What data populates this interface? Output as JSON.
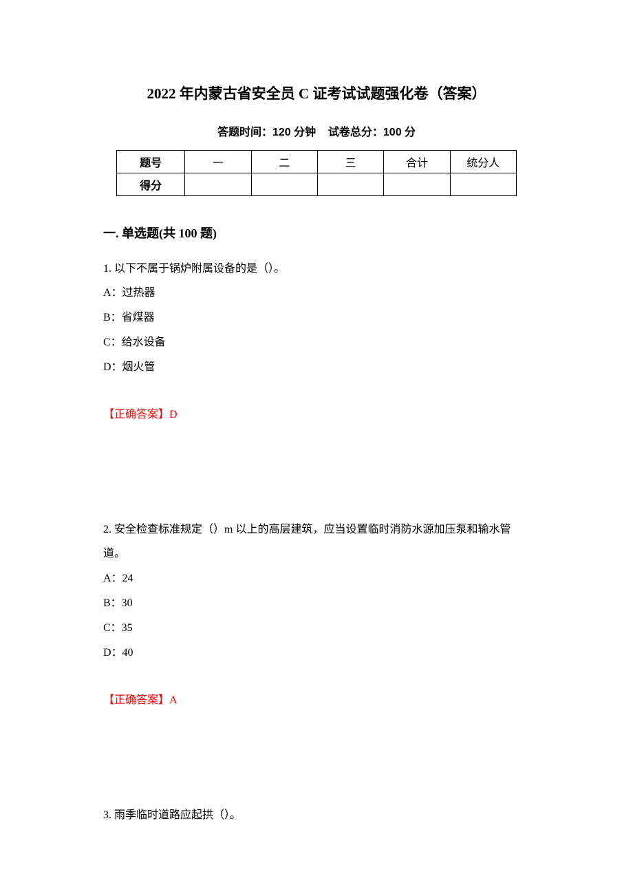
{
  "title": "2022 年内蒙古省安全员 C 证考试试题强化卷（答案）",
  "subtitle_time_label": "答题时间：120 分钟",
  "subtitle_score_label": "试卷总分：100 分",
  "table": {
    "header_row_label": "题号",
    "score_row_label": "得分",
    "col1": "一",
    "col2": "二",
    "col3": "三",
    "col4": "合计",
    "col5": "统分人"
  },
  "section_title": "一. 单选题(共 100 题)",
  "q1": {
    "text": "1. 以下不属于锅炉附属设备的是（）。",
    "optA": "A：过热器",
    "optB": "B：省煤器",
    "optC": "C：给水设备",
    "optD": "D：烟火管",
    "answer": "【正确答案】D"
  },
  "q2": {
    "text": "2. 安全检查标准规定（）m 以上的高层建筑，应当设置临时消防水源加压泵和输水管道。",
    "optA": "A：24",
    "optB": "B：30",
    "optC": "C：35",
    "optD": "D：40",
    "answer": "【正确答案】A"
  },
  "q3": {
    "text": "3. 雨季临时道路应起拱（）。"
  },
  "colors": {
    "text": "#000000",
    "answer": "#ff0000",
    "background": "#ffffff",
    "border": "#000000"
  },
  "fonts": {
    "title_size": 21,
    "subtitle_size": 16,
    "section_size": 18,
    "body_size": 16
  }
}
